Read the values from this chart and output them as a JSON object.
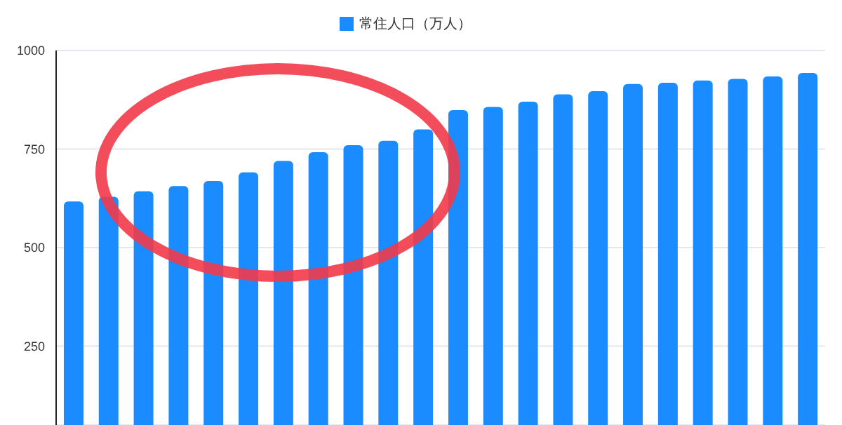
{
  "chart_data": {
    "type": "bar",
    "categories": [
      null,
      null,
      null,
      null,
      null,
      null,
      null,
      null,
      null,
      null,
      null,
      null,
      null,
      null,
      null,
      null,
      null,
      null,
      null,
      null,
      null,
      null
    ],
    "series": [
      {
        "name": "常住人口（万人）",
        "color": "#1a8cff",
        "values": [
          617,
          629,
          643,
          656,
          669,
          691,
          720,
          742,
          760,
          771,
          800,
          849,
          857,
          870,
          889,
          897,
          915,
          918,
          924,
          928,
          934,
          943
        ]
      }
    ],
    "ylim": [
      50,
      1000
    ],
    "yticks": [
      250,
      500,
      750,
      1000
    ],
    "grid": "y",
    "legend": "top",
    "tick_labels": "y"
  }
}
